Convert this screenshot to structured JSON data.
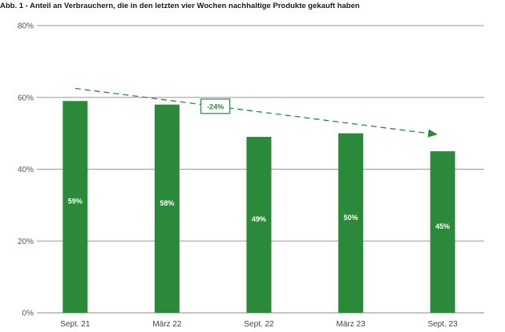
{
  "chart_data": {
    "type": "bar",
    "title": "Abb. 1 - Anteil an Verbrauchern, die in den letzten vier Wochen nachhaltige Produkte gekauft haben",
    "categories": [
      "Sept. 21",
      "März 22",
      "Sept. 22",
      "März 23",
      "Sept. 23"
    ],
    "values": [
      59,
      58,
      49,
      50,
      45
    ],
    "value_labels": [
      "59%",
      "58%",
      "49%",
      "50%",
      "45%"
    ],
    "ylim": [
      0,
      80
    ],
    "yticks": [
      0,
      20,
      40,
      60,
      80
    ],
    "ytick_labels": [
      "0%",
      "20%",
      "40%",
      "60%",
      "80%"
    ],
    "grid": true,
    "bar_color": "#2a8a3a",
    "annotation": {
      "text": "-24%",
      "style": "dashed-trend-arrow",
      "from_y": 62.5,
      "to_y": 50
    }
  }
}
